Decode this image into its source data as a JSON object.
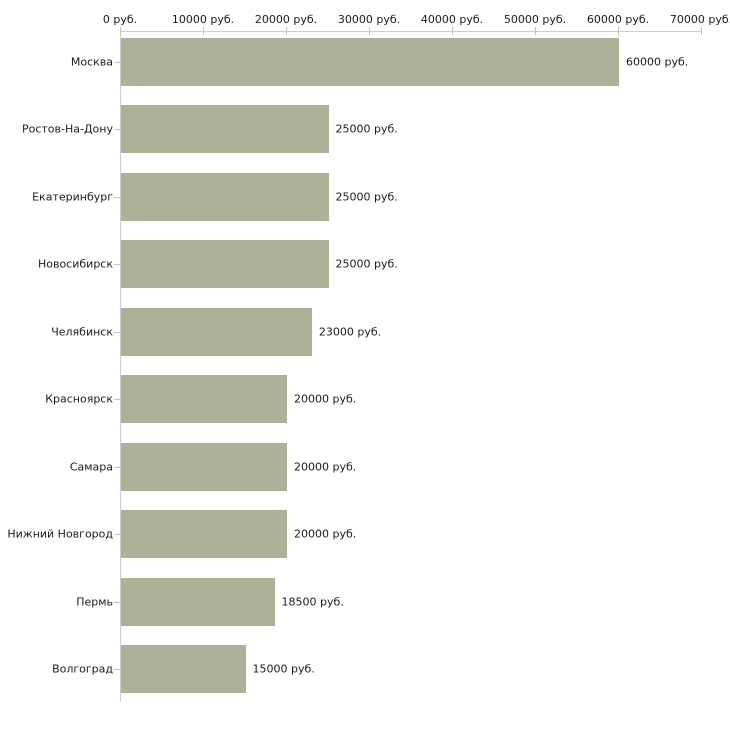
{
  "chart_data": {
    "type": "bar",
    "orientation": "horizontal",
    "title": "",
    "xlabel": "",
    "ylabel": "",
    "categories": [
      "Москва",
      "Ростов-На-Дону",
      "Екатеринбург",
      "Новосибирск",
      "Челябинск",
      "Красноярск",
      "Самара",
      "Нижний Новгород",
      "Пермь",
      "Волгоград"
    ],
    "values": [
      60000,
      25000,
      25000,
      25000,
      23000,
      20000,
      20000,
      20000,
      18500,
      15000
    ],
    "value_labels": [
      "60000 руб.",
      "25000 руб.",
      "25000 руб.",
      "25000 руб.",
      "23000 руб.",
      "20000 руб.",
      "20000 руб.",
      "20000 руб.",
      "18500 руб.",
      "15000 руб."
    ],
    "x_ticks": [
      0,
      10000,
      20000,
      30000,
      40000,
      50000,
      60000,
      70000
    ],
    "x_tick_labels": [
      "0 руб.",
      "10000 руб.",
      "20000 руб.",
      "30000 руб.",
      "40000 руб.",
      "50000 руб.",
      "60000 руб.",
      "70000 руб."
    ],
    "xlim": [
      0,
      70000
    ],
    "grid": false,
    "legend": null,
    "colors": {
      "bar": "#acb298",
      "axis": "#cecece",
      "tick": "#c9c9a0",
      "text": "#1c1c1c",
      "background": "#ffffff"
    }
  }
}
